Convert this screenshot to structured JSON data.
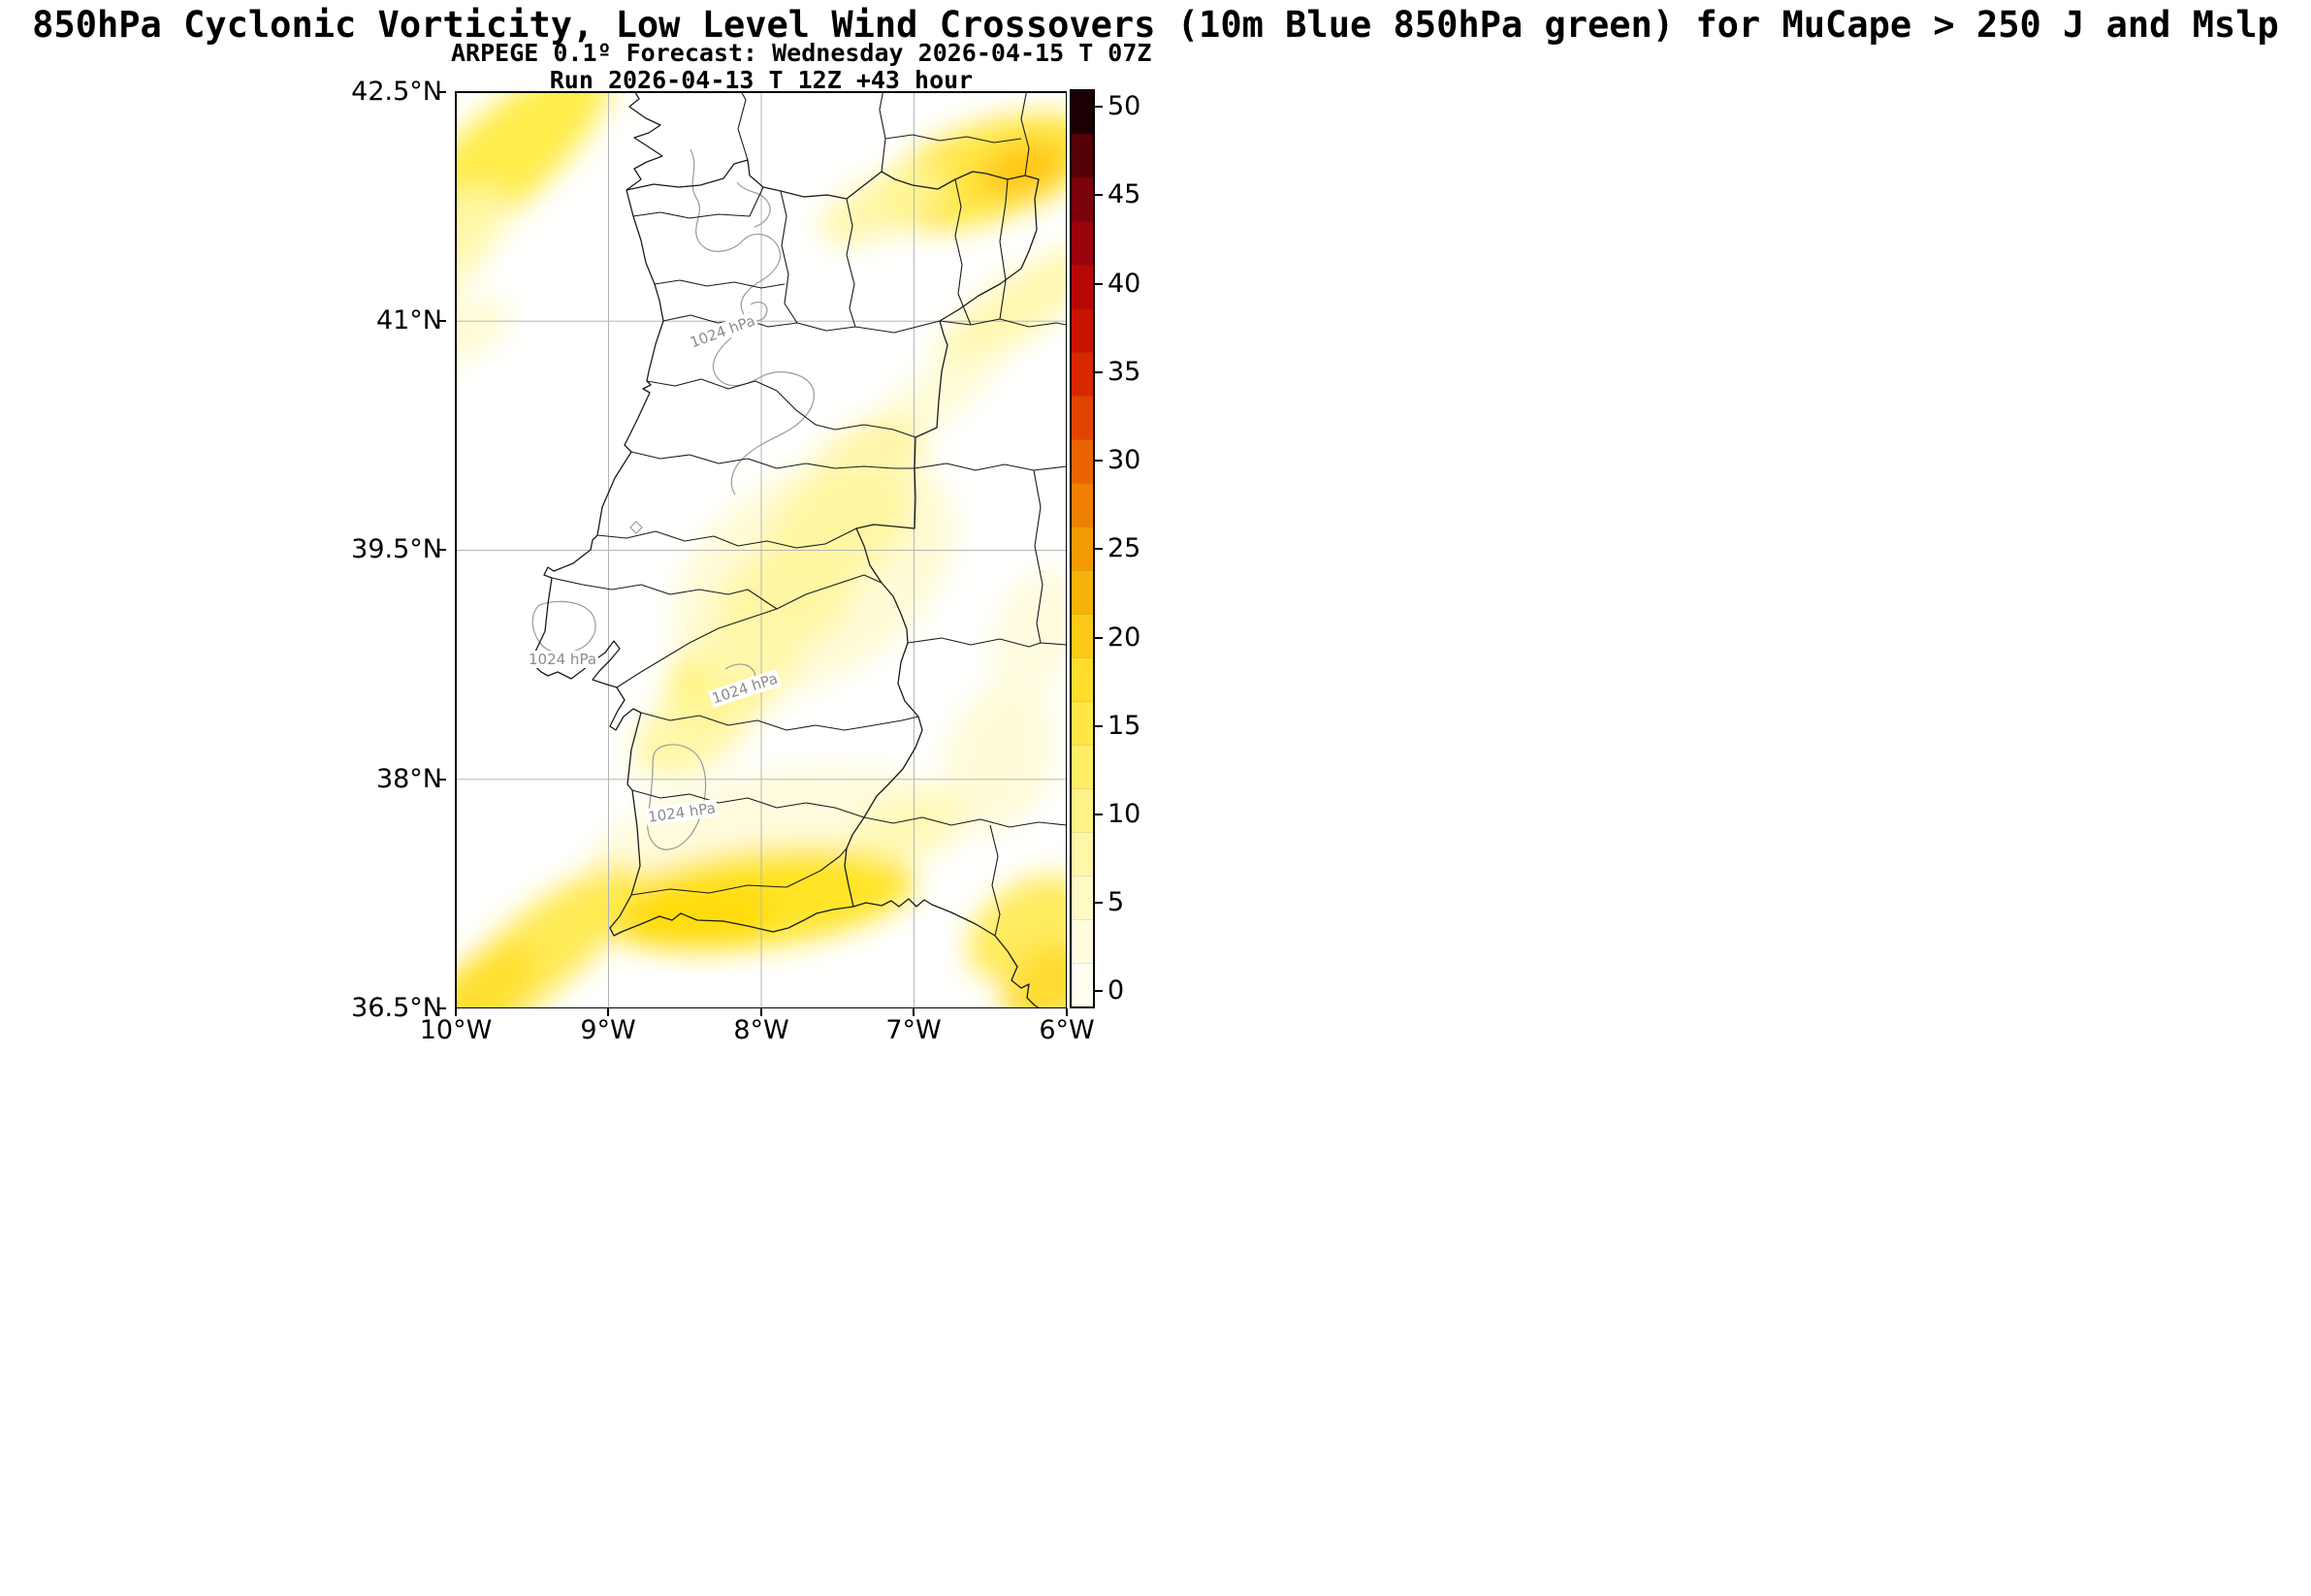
{
  "titles": {
    "line1": "850hPa Cyclonic Vorticity, Low Level Wind Crossovers (10m Blue 850hPa green) for MuCape > 250 J and Mslp",
    "line2": "ARPEGE 0.1º Forecast: Wednesday 2026-04-15 T 07Z",
    "line3": "Run 2026-04-13 T 12Z +43 hour"
  },
  "axes": {
    "y_ticks": [
      {
        "label": "42.5°N"
      },
      {
        "label": "41°N"
      },
      {
        "label": "39.5°N"
      },
      {
        "label": "38°N"
      },
      {
        "label": "36.5°N"
      }
    ],
    "x_ticks": [
      {
        "label": "10°W"
      },
      {
        "label": "9°W"
      },
      {
        "label": "8°W"
      },
      {
        "label": "7°W"
      },
      {
        "label": "6°W"
      }
    ]
  },
  "colorbar": {
    "tick_labels": [
      "50",
      "45",
      "40",
      "35",
      "30",
      "25",
      "20",
      "15",
      "10",
      "5",
      "0"
    ],
    "min": 0,
    "max": 50,
    "colors_bottom_to_top": [
      "#fffef0",
      "#fffce0",
      "#fffac6",
      "#fff7a8",
      "#fff388",
      "#ffee66",
      "#ffe846",
      "#ffdd2c",
      "#fcc918",
      "#f8b20c",
      "#f49a04",
      "#f08000",
      "#ea6400",
      "#e24400",
      "#d82700",
      "#cb1202",
      "#b80707",
      "#9c030c",
      "#7a020c",
      "#540108",
      "#1a0003"
    ]
  },
  "map": {
    "mslp_label": "1024 hPa"
  },
  "chart_data": {
    "type": "heatmap",
    "title": "850hPa Cyclonic Vorticity, Low Level Wind Crossovers (10m Blue 850hPa green) for MuCape > 250 J and Mslp",
    "subtitle": "ARPEGE 0.1º Forecast: Wednesday 2026-04-15 T 07Z",
    "run_info": "Run 2026-04-13 T 12Z +43 hour",
    "model": "ARPEGE 0.1º",
    "x_axis": {
      "kind": "longitude",
      "ticks": [
        "10°W",
        "9°W",
        "8°W",
        "7°W",
        "6°W"
      ],
      "range_deg_west": [
        10,
        6
      ]
    },
    "y_axis": {
      "kind": "latitude",
      "ticks": [
        "42.5°N",
        "41°N",
        "39.5°N",
        "38°N",
        "36.5°N"
      ],
      "range_deg_north": [
        36.5,
        42.5
      ]
    },
    "colorbar": {
      "orientation": "vertical",
      "position": "right",
      "ticks": [
        0,
        5,
        10,
        15,
        20,
        25,
        30,
        35,
        40,
        45,
        50
      ]
    },
    "mslp_contours_hpa": [
      1024,
      1024,
      1024,
      1024
    ],
    "shaded_regions": [
      {
        "area": "northwest corner, offshore Galicia diagonal band",
        "approx_value_range": [
          5,
          12
        ]
      },
      {
        "area": "northeast interior Spain band near top-right",
        "approx_value_range": [
          8,
          18
        ]
      },
      {
        "area": "diagonal band along right edge toward center",
        "approx_value_range": [
          3,
          8
        ]
      },
      {
        "area": "large central band from east-central border through central Portugal",
        "approx_value_range": [
          5,
          14
        ]
      },
      {
        "area": "southern Portugal / Algarve coastal band",
        "approx_value_range": [
          8,
          15
        ]
      },
      {
        "area": "southwest offshore diagonal band exiting bottom-left",
        "approx_value_range": [
          5,
          12
        ]
      },
      {
        "area": "southeast corner near Cádiz",
        "approx_value_range": [
          5,
          13
        ]
      }
    ],
    "grid": true,
    "legend_position": "none"
  }
}
